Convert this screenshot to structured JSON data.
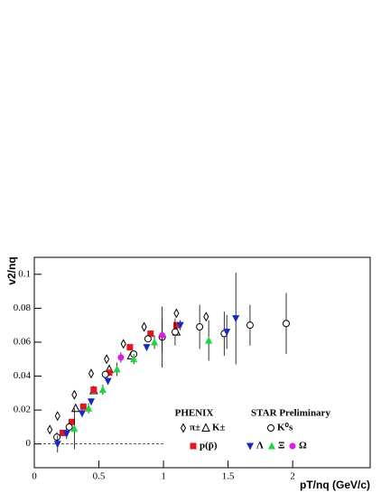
{
  "chart_data": {
    "type": "scatter",
    "x_label": "pT/nq (GeV/c)",
    "y_label": "v2/nq",
    "xlim": [
      0,
      2.6
    ],
    "ylim": [
      -0.014,
      0.11
    ],
    "xticks": [
      0,
      0.5,
      1,
      1.5,
      2
    ],
    "yticks": [
      0,
      0.02,
      0.04,
      0.06,
      0.08,
      0.1
    ],
    "legend_titles": [
      "PHENIX",
      "STAR Preliminary"
    ],
    "series": [
      {
        "name": "π±",
        "color": "#000000",
        "marker": "diamond-open",
        "x": [
          0.12,
          0.18,
          0.31,
          0.44,
          0.56,
          0.69,
          0.85,
          1.1,
          1.33
        ],
        "values": [
          0.0085,
          0.0165,
          0.029,
          0.0415,
          0.05,
          0.059,
          0.069,
          0.077,
          0.075
        ]
      },
      {
        "name": "K±",
        "color": "#000000",
        "marker": "triangle-open",
        "x": [
          0.32,
          0.46,
          0.58,
          0.75,
          1.1
        ],
        "values": [
          0.021,
          0.0315,
          0.044,
          0.052,
          0.066
        ]
      },
      {
        "name": "p(p̄)",
        "color": "#e8141e",
        "marker": "square",
        "x": [
          0.22,
          0.29,
          0.38,
          0.46,
          0.58,
          0.74,
          0.9,
          1.1
        ],
        "values": [
          0.0065,
          0.013,
          0.022,
          0.032,
          0.042,
          0.057,
          0.065,
          0.07
        ]
      },
      {
        "name": "K⁰s",
        "color": "#000000",
        "marker": "circle-open",
        "x": [
          0.175,
          0.27,
          0.55,
          0.77,
          0.88,
          0.99,
          1.09,
          1.28,
          1.47,
          1.67,
          1.95
        ],
        "values": [
          0.004,
          0.01,
          0.041,
          0.053,
          0.062,
          0.063,
          0.066,
          0.069,
          0.065,
          0.07,
          0.071
        ],
        "errors": [
          0.003,
          0.003,
          0.002,
          0.002,
          0.002,
          0.018,
          0.008,
          0.013,
          0.013,
          0.012,
          0.018
        ]
      },
      {
        "name": "Λ",
        "color": "#1428d2",
        "marker": "triangle-down",
        "x": [
          0.18,
          0.25,
          0.37,
          0.44,
          0.57,
          0.87,
          1.13,
          1.49,
          1.56
        ],
        "values": [
          0.0,
          0.006,
          0.018,
          0.025,
          0.037,
          0.057,
          0.07,
          0.066,
          0.074
        ],
        "errors": [
          0.005,
          0.003,
          0.002,
          0.002,
          0.002,
          0.002,
          0.003,
          0.01,
          0.027
        ]
      },
      {
        "name": "Ξ",
        "color": "#14dc3c",
        "marker": "triangle",
        "x": [
          0.31,
          0.42,
          0.53,
          0.64,
          0.77,
          0.93,
          1.35
        ],
        "values": [
          0.009,
          0.021,
          0.032,
          0.044,
          0.05,
          0.06,
          0.061
        ],
        "errors": [
          0.012,
          0.003,
          0.003,
          0.004,
          0.003,
          0.004,
          0.012
        ]
      },
      {
        "name": "Ω",
        "color": "#e614e6",
        "marker": "circle",
        "x": [
          0.67,
          0.99
        ],
        "values": [
          0.051,
          0.064
        ],
        "errors": [
          0.003,
          0.01
        ]
      }
    ]
  }
}
